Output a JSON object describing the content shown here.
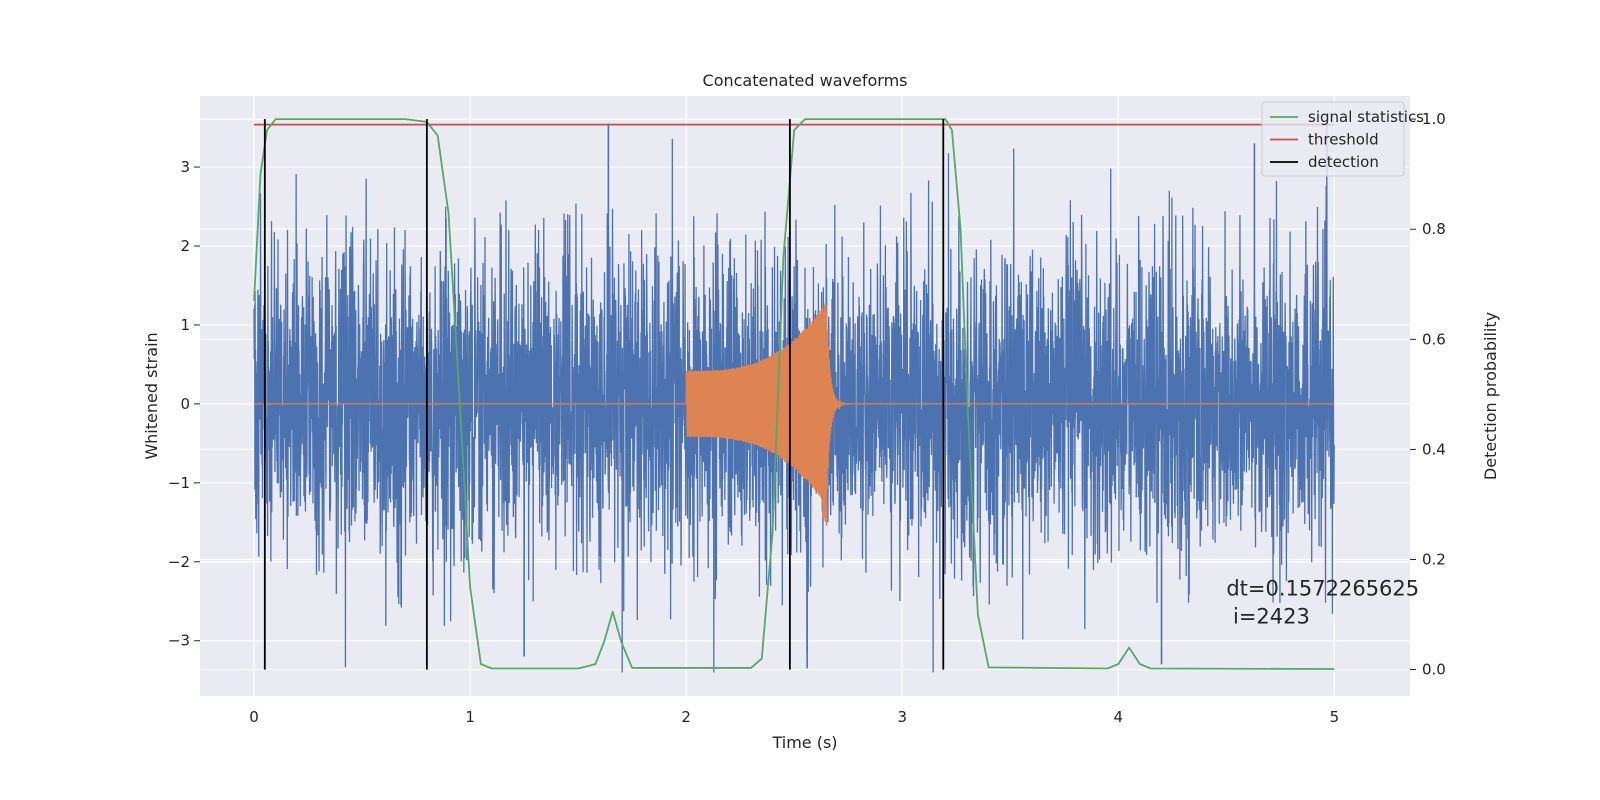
{
  "chart_data": {
    "type": "line",
    "title": "Concatenated waveforms",
    "xlabel": "Time (s)",
    "ylabel": "Whitened strain",
    "y2label": "Detection probability",
    "xlim": [
      -0.25,
      5.35
    ],
    "ylim": [
      -3.7,
      3.9
    ],
    "y2lim": [
      -0.048,
      1.042
    ],
    "xticks": [
      0,
      1,
      2,
      3,
      4,
      5
    ],
    "xtick_labels": [
      "0",
      "1",
      "2",
      "3",
      "4",
      "5"
    ],
    "yticks": [
      -3,
      -2,
      -1,
      0,
      1,
      2,
      3
    ],
    "ytick_labels": [
      "−3",
      "−2",
      "−1",
      "0",
      "1",
      "2",
      "3"
    ],
    "y2ticks": [
      0.0,
      0.2,
      0.4,
      0.6,
      0.8,
      1.0
    ],
    "y2tick_labels": [
      "0.0",
      "0.2",
      "0.4",
      "0.6",
      "0.8",
      "1.0"
    ],
    "grid": true,
    "legend_position": "top-right",
    "legend": [
      "signal statistics",
      "threshold",
      "detection"
    ],
    "colors": {
      "noise": "#4c72b0",
      "waveform": "#dd8452",
      "signal_statistics": "#55a868",
      "threshold": "#c44e52",
      "detection": "#000000",
      "background": "#eaeaf2",
      "grid": "#ffffff"
    },
    "series": [
      {
        "name": "",
        "axis": "left",
        "kind": "noise",
        "x_range": [
          0,
          5
        ],
        "approx_amplitude": [
          -3.4,
          3.55
        ],
        "peaks": [
          {
            "x": 1.64,
            "y": 3.55
          },
          {
            "x": 2.48,
            "y": 3.45
          },
          {
            "x": 2.56,
            "y": -3.35
          },
          {
            "x": 4.2,
            "y": -3.3
          },
          {
            "x": 1.25,
            "y": -3.2
          },
          {
            "x": 4.63,
            "y": 3.3
          }
        ]
      },
      {
        "name": "",
        "axis": "left",
        "kind": "chirp",
        "x_start": 2.0,
        "x_merger": 2.65,
        "x_end": 2.76,
        "amplitude_start": 0.42,
        "amplitude_peak": 1.3,
        "amplitude_min_peak": -1.55
      },
      {
        "name": "signal statistics",
        "axis": "right",
        "points": [
          [
            0.0,
            0.67
          ],
          [
            0.03,
            0.9
          ],
          [
            0.06,
            0.98
          ],
          [
            0.1,
            1.0
          ],
          [
            0.7,
            1.0
          ],
          [
            0.8,
            0.995
          ],
          [
            0.85,
            0.97
          ],
          [
            0.9,
            0.83
          ],
          [
            0.95,
            0.5
          ],
          [
            1.0,
            0.15
          ],
          [
            1.05,
            0.01
          ],
          [
            1.1,
            0.002
          ],
          [
            1.5,
            0.002
          ],
          [
            1.58,
            0.01
          ],
          [
            1.62,
            0.05
          ],
          [
            1.66,
            0.105
          ],
          [
            1.7,
            0.05
          ],
          [
            1.75,
            0.003
          ],
          [
            2.3,
            0.003
          ],
          [
            2.35,
            0.02
          ],
          [
            2.4,
            0.25
          ],
          [
            2.45,
            0.75
          ],
          [
            2.5,
            0.98
          ],
          [
            2.55,
            1.0
          ],
          [
            3.2,
            1.0
          ],
          [
            3.23,
            0.98
          ],
          [
            3.27,
            0.8
          ],
          [
            3.3,
            0.5
          ],
          [
            3.35,
            0.1
          ],
          [
            3.4,
            0.004
          ],
          [
            3.95,
            0.002
          ],
          [
            4.0,
            0.01
          ],
          [
            4.05,
            0.04
          ],
          [
            4.1,
            0.01
          ],
          [
            4.15,
            0.002
          ],
          [
            5.0,
            0.001
          ]
        ]
      },
      {
        "name": "threshold",
        "axis": "right",
        "x": [
          0,
          5
        ],
        "y": [
          0.99,
          0.99
        ]
      },
      {
        "name": "detection",
        "axis": "right",
        "kind": "vlines",
        "x": [
          0.05,
          0.8,
          2.48,
          3.19
        ],
        "y_range": [
          0.0,
          1.0
        ]
      }
    ],
    "annotation": {
      "line1": "dt=0.1572265625",
      "line2": " i=2423",
      "x": 4.5,
      "y": -2.4
    }
  }
}
